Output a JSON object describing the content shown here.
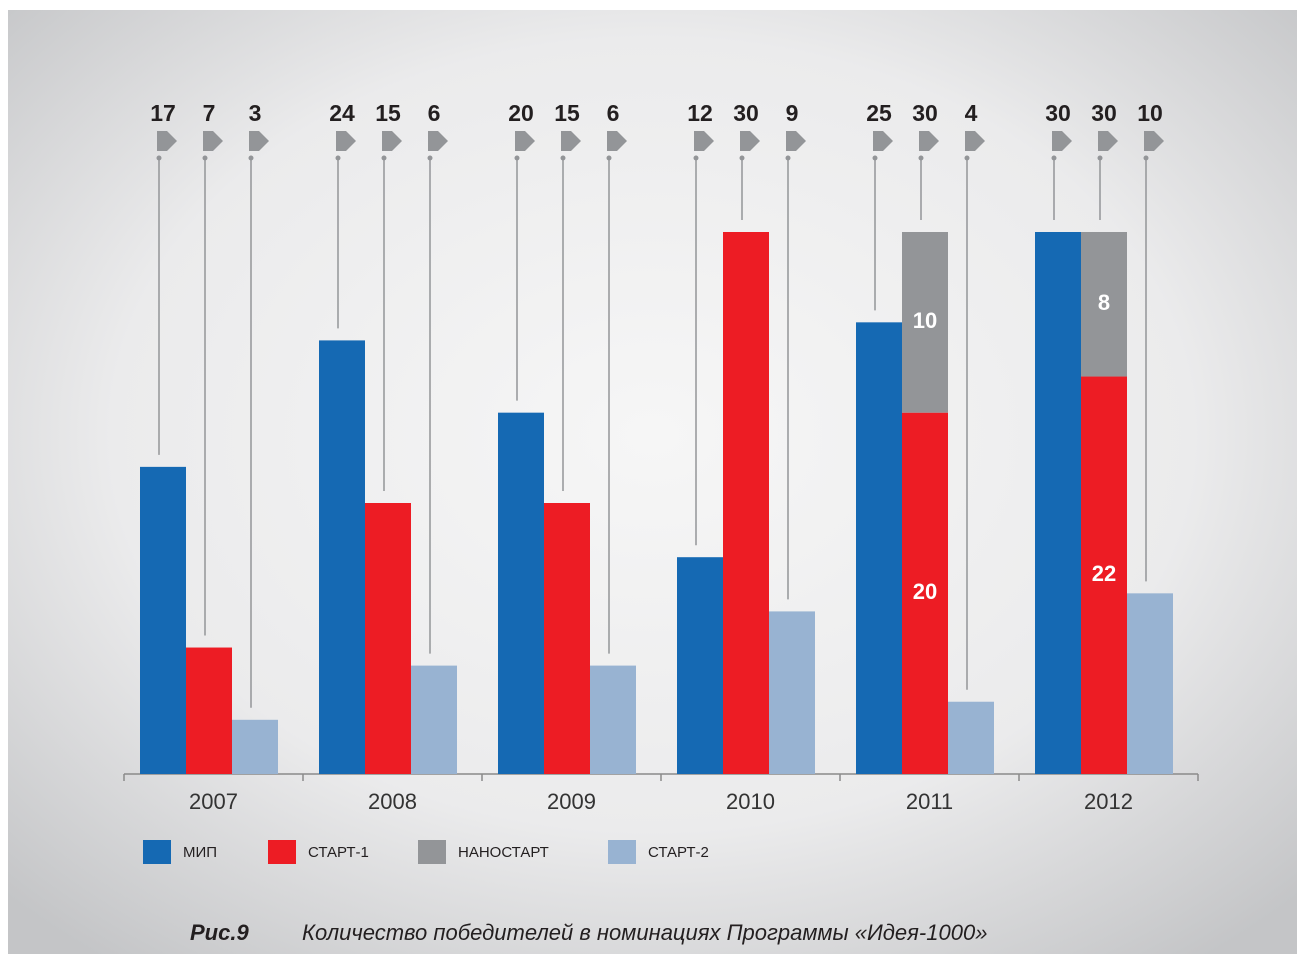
{
  "chart_data": {
    "type": "bar",
    "caption_label": "Рис.9",
    "caption": "Количество победителей в номинациях Программы «Идея-1000»",
    "categories": [
      "2007",
      "2008",
      "2009",
      "2010",
      "2011",
      "2012"
    ],
    "series": [
      {
        "name": "МИП",
        "color": "#1569b3",
        "values": [
          17,
          24,
          20,
          12,
          25,
          30
        ]
      },
      {
        "name": "СТАРТ-1",
        "color": "#ed1c24",
        "values": [
          7,
          15,
          15,
          30,
          20,
          22
        ]
      },
      {
        "name": "НАНОСТАРТ",
        "color": "#939598",
        "values": [
          null,
          null,
          null,
          null,
          10,
          8
        ]
      },
      {
        "name": "СТАРТ-2",
        "color": "#98b3d2",
        "values": [
          3,
          6,
          6,
          9,
          4,
          10
        ]
      }
    ],
    "stack_totals": [
      null,
      null,
      null,
      null,
      30,
      30
    ],
    "ylim": [
      0,
      30
    ]
  }
}
